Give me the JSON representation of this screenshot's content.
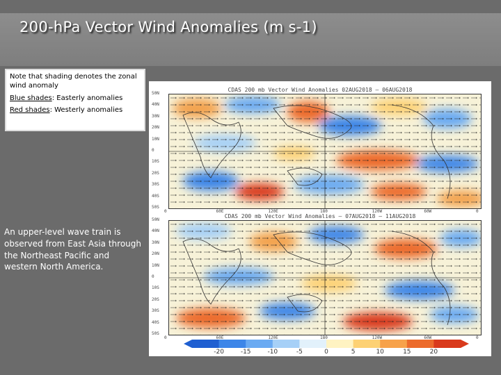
{
  "header": {
    "title": "200-hPa Vector Wind Anomalies  (m s-1)"
  },
  "note": {
    "line1": "Note that shading denotes the zonal wind anomaly",
    "blue_label": "Blue shades",
    "blue_text": ": Easterly anomalies",
    "red_label": "Red shades",
    "red_text": ": Westerly anomalies"
  },
  "description": "An upper-level wave train is observed from East Asia through the Northeast Pacific and western North America.",
  "figure": {
    "top_title": "CDAS  200  mb  Vector  Wind  Anomalies       02AUG2018 – 06AUG2018",
    "bottom_title": "CDAS  200  mb  Vector  Wind  Anomalies  —  07AUG2018 – 11AUG2018",
    "lat_labels": [
      "50N",
      "40N",
      "30N",
      "20N",
      "10N",
      "0",
      "10S",
      "20S",
      "30S",
      "40S",
      "50S"
    ],
    "lon_labels": [
      "0",
      "60E",
      "120E",
      "180",
      "120W",
      "60W",
      "0"
    ],
    "colorbar": {
      "labels": [
        "-20",
        "-15",
        "-10",
        "-5",
        "0",
        "5",
        "10",
        "15",
        "20"
      ],
      "colors": [
        "#1f5fd1",
        "#3d86e8",
        "#6aaaf2",
        "#a6d0f7",
        "#e2f1fb",
        "#fff3c2",
        "#fdd174",
        "#f7a24b",
        "#ec6b2c",
        "#d93a1c"
      ]
    }
  }
}
